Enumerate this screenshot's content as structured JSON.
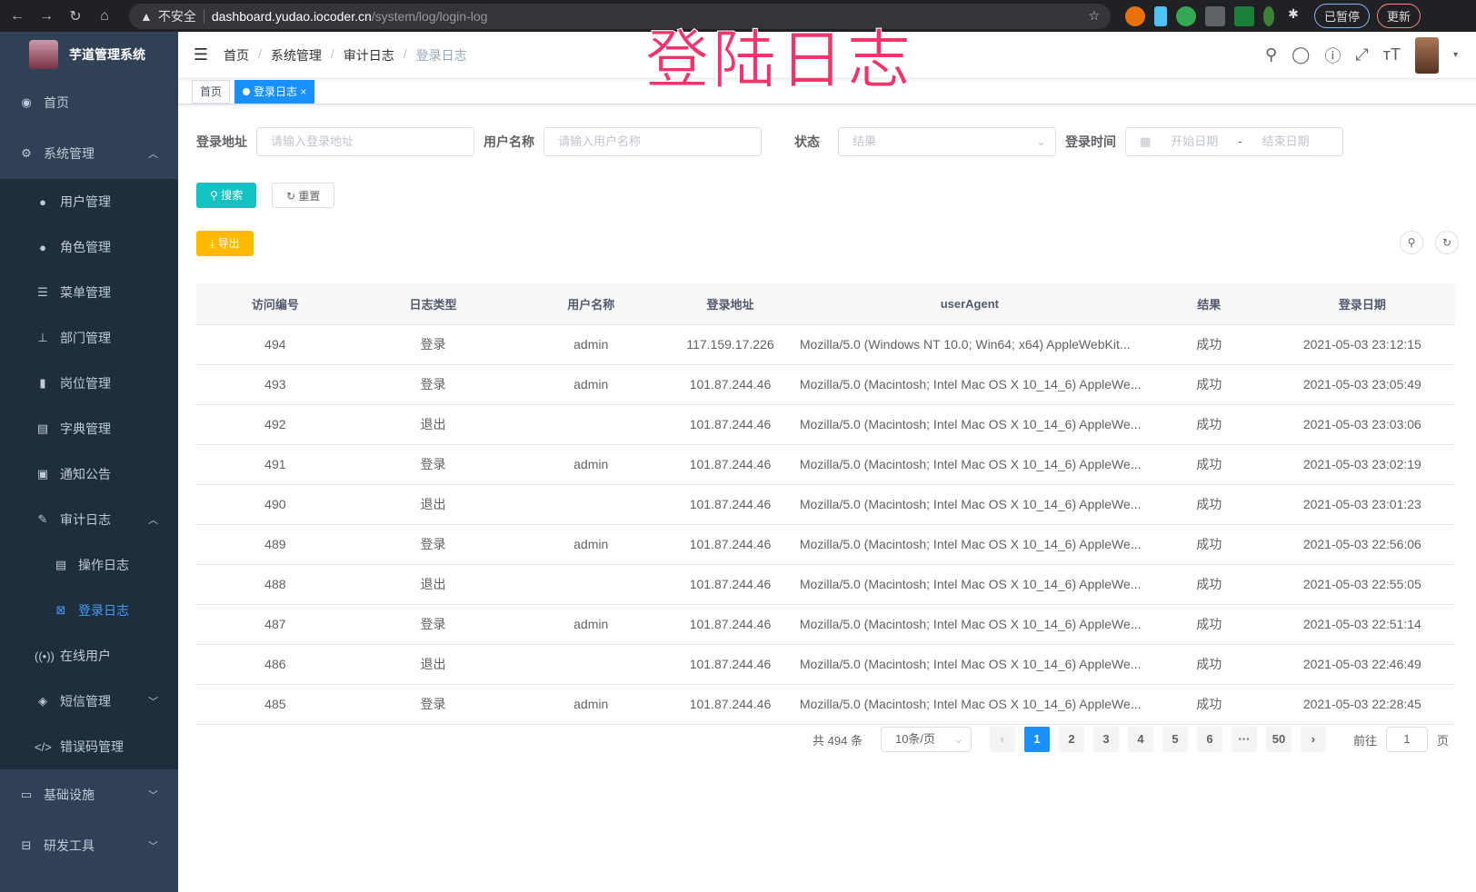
{
  "browser": {
    "security": "不安全",
    "url_host": "dashboard.yudao.iocoder.cn",
    "url_path": "/system/log/login-log",
    "profile": "已暂停",
    "update": "更新"
  },
  "overlay_title": "登陆日志",
  "sidebar": {
    "app_title": "芋道管理系统",
    "items": [
      {
        "label": "首页",
        "icon": "dashboard-icon"
      },
      {
        "label": "系统管理",
        "icon": "gear-icon"
      },
      {
        "label": "用户管理",
        "icon": "user-icon"
      },
      {
        "label": "角色管理",
        "icon": "peoples-icon"
      },
      {
        "label": "菜单管理",
        "icon": "tree-table-icon"
      },
      {
        "label": "部门管理",
        "icon": "tree-icon"
      },
      {
        "label": "岗位管理",
        "icon": "post-icon"
      },
      {
        "label": "字典管理",
        "icon": "dict-icon"
      },
      {
        "label": "通知公告",
        "icon": "message-icon"
      },
      {
        "label": "审计日志",
        "icon": "log-icon"
      },
      {
        "label": "操作日志",
        "icon": "form-icon"
      },
      {
        "label": "登录日志",
        "icon": "logininfor-icon"
      },
      {
        "label": "在线用户",
        "icon": "online-icon"
      },
      {
        "label": "短信管理",
        "icon": "shield-icon"
      },
      {
        "label": "错误码管理",
        "icon": "code-icon"
      },
      {
        "label": "基础设施",
        "icon": "monitor-icon"
      },
      {
        "label": "研发工具",
        "icon": "tool-icon"
      }
    ]
  },
  "breadcrumb": [
    "首页",
    "系统管理",
    "审计日志",
    "登录日志"
  ],
  "tags": [
    "首页",
    "登录日志"
  ],
  "search": {
    "fields": [
      {
        "label": "登录地址",
        "placeholder": "请输入登录地址"
      },
      {
        "label": "用户名称",
        "placeholder": "请输入用户名称"
      },
      {
        "label": "状态",
        "placeholder": "结果"
      },
      {
        "label": "登录时间",
        "start": "开始日期",
        "sep": "-",
        "end": "结束日期"
      }
    ],
    "search_btn": "搜索",
    "reset_btn": "重置",
    "export_btn": "导出"
  },
  "table": {
    "columns": [
      "访问编号",
      "日志类型",
      "用户名称",
      "登录地址",
      "userAgent",
      "结果",
      "登录日期"
    ],
    "rows": [
      [
        "494",
        "登录",
        "admin",
        "117.159.17.226",
        "Mozilla/5.0 (Windows NT 10.0; Win64; x64) AppleWebKit...",
        "成功",
        "2021-05-03 23:12:15"
      ],
      [
        "493",
        "登录",
        "admin",
        "101.87.244.46",
        "Mozilla/5.0 (Macintosh; Intel Mac OS X 10_14_6) AppleWe...",
        "成功",
        "2021-05-03 23:05:49"
      ],
      [
        "492",
        "退出",
        "",
        "101.87.244.46",
        "Mozilla/5.0 (Macintosh; Intel Mac OS X 10_14_6) AppleWe...",
        "成功",
        "2021-05-03 23:03:06"
      ],
      [
        "491",
        "登录",
        "admin",
        "101.87.244.46",
        "Mozilla/5.0 (Macintosh; Intel Mac OS X 10_14_6) AppleWe...",
        "成功",
        "2021-05-03 23:02:19"
      ],
      [
        "490",
        "退出",
        "",
        "101.87.244.46",
        "Mozilla/5.0 (Macintosh; Intel Mac OS X 10_14_6) AppleWe...",
        "成功",
        "2021-05-03 23:01:23"
      ],
      [
        "489",
        "登录",
        "admin",
        "101.87.244.46",
        "Mozilla/5.0 (Macintosh; Intel Mac OS X 10_14_6) AppleWe...",
        "成功",
        "2021-05-03 22:56:06"
      ],
      [
        "488",
        "退出",
        "",
        "101.87.244.46",
        "Mozilla/5.0 (Macintosh; Intel Mac OS X 10_14_6) AppleWe...",
        "成功",
        "2021-05-03 22:55:05"
      ],
      [
        "487",
        "登录",
        "admin",
        "101.87.244.46",
        "Mozilla/5.0 (Macintosh; Intel Mac OS X 10_14_6) AppleWe...",
        "成功",
        "2021-05-03 22:51:14"
      ],
      [
        "486",
        "退出",
        "",
        "101.87.244.46",
        "Mozilla/5.0 (Macintosh; Intel Mac OS X 10_14_6) AppleWe...",
        "成功",
        "2021-05-03 22:46:49"
      ],
      [
        "485",
        "登录",
        "admin",
        "101.87.244.46",
        "Mozilla/5.0 (Macintosh; Intel Mac OS X 10_14_6) AppleWe...",
        "成功",
        "2021-05-03 22:28:45"
      ]
    ]
  },
  "pagination": {
    "total": "共 494 条",
    "page_size": "10条/页",
    "pages": [
      "1",
      "2",
      "3",
      "4",
      "5",
      "6",
      "···",
      "50"
    ],
    "current": "1",
    "goto_prefix": "前往",
    "goto_value": "1",
    "goto_suffix": "页"
  },
  "colors": {
    "sidebar": "#304156",
    "primary": "#1890ff",
    "search": "#13c2c2",
    "export": "#ffba00"
  }
}
